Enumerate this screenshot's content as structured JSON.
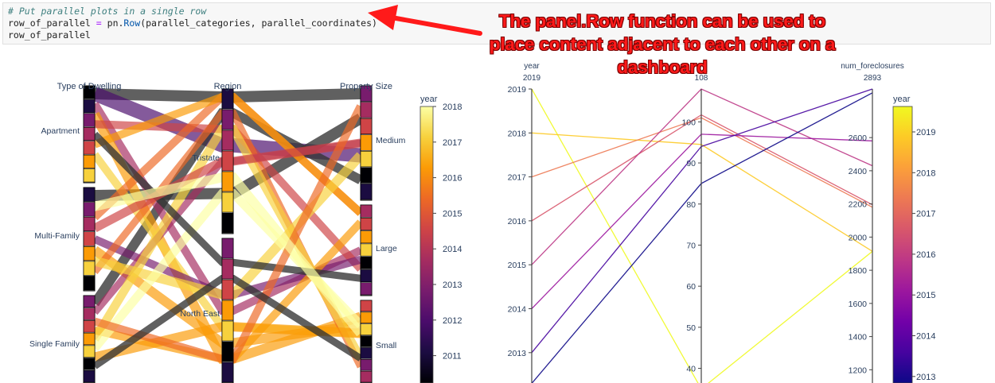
{
  "code": {
    "comment": "# Put parallel plots in a single row",
    "line2_var": "row_of_parallel",
    "line2_eq": " = ",
    "line2_mod": "pn.",
    "line2_fn": "Row",
    "line2_args": "(parallel_categories, parallel_coordinates)",
    "line3": "row_of_parallel"
  },
  "annotation": {
    "text": "The panel.Row function can be used to place content adjacent to each other on a dashboard",
    "arrow_color": "#ff1a1a"
  },
  "chart_data": [
    {
      "type": "parallel_categories",
      "dimensions": [
        {
          "label": "Type of Dwelling",
          "categories": [
            "Apartment",
            "Multi-Family",
            "Single Family"
          ]
        },
        {
          "label": "Region",
          "categories": [
            "Tristate",
            "North East"
          ]
        },
        {
          "label": "Property Size",
          "categories": [
            "Medium",
            "Large",
            "Small"
          ]
        }
      ],
      "colorbar": {
        "title": "year",
        "ticks": [
          "2018",
          "2017",
          "2016",
          "2015",
          "2014",
          "2013",
          "2012",
          "2011"
        ],
        "colors": [
          "#fcffa4",
          "#f7d13d",
          "#fb9b06",
          "#ed6925",
          "#cf4446",
          "#a52c60",
          "#781c6d",
          "#4a0c6b",
          "#1b0c41",
          "#000004"
        ]
      }
    },
    {
      "type": "parallel_coordinates",
      "dimensions": [
        {
          "label": "year",
          "top_value": "2019",
          "ticks": [
            "2019",
            "2018",
            "2017",
            "2016",
            "2015",
            "2014",
            "2013"
          ]
        },
        {
          "label": "",
          "top_value": "108",
          "ticks": [
            "100",
            "90",
            "80",
            "70",
            "60",
            "50",
            "40"
          ]
        },
        {
          "label": "num_foreclosures",
          "top_value": "2893",
          "ticks": [
            "2600",
            "2400",
            "2200",
            "2000",
            "1800",
            "1600",
            "1400",
            "1200"
          ]
        }
      ],
      "lines": [
        {
          "year": 2019,
          "mid": 35,
          "num_foreclosures": 1914
        },
        {
          "year": 2018,
          "mid": 94.5,
          "num_foreclosures": 1914
        },
        {
          "year": 2017,
          "mid": 101,
          "num_foreclosures": 2180
        },
        {
          "year": 2016,
          "mid": 101.7,
          "num_foreclosures": 2195
        },
        {
          "year": 2015,
          "mid": 108,
          "num_foreclosures": 2430
        },
        {
          "year": 2014,
          "mid": 97,
          "num_foreclosures": 2580
        },
        {
          "year": 2013,
          "mid": 94,
          "num_foreclosures": 2893
        },
        {
          "year": 2012.3,
          "mid": 85,
          "num_foreclosures": 2870
        }
      ],
      "colorbar": {
        "title": "year",
        "ticks": [
          "2019",
          "2018",
          "2017",
          "2016",
          "2015",
          "2014",
          "2013"
        ],
        "colors": [
          "#f0f921",
          "#fdca26",
          "#fb9f3a",
          "#ed7953",
          "#d8576b",
          "#bd3786",
          "#9c179e",
          "#7201a8",
          "#46039f",
          "#0d0887"
        ]
      }
    }
  ]
}
